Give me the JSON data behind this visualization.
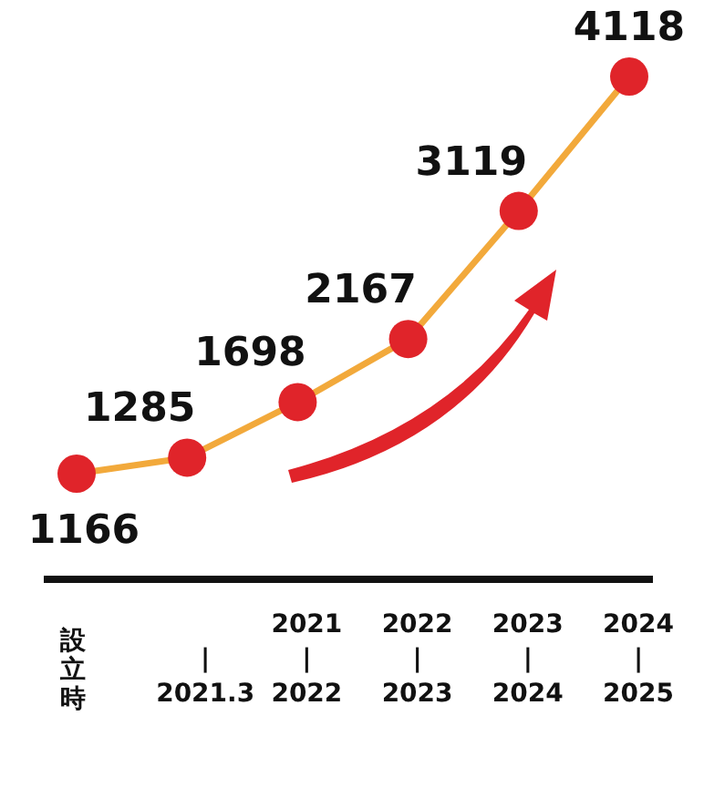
{
  "chart_data": {
    "type": "line",
    "categories": [
      "設立時",
      "|\n2021.3",
      "2021\n|\n2022",
      "2022\n|\n2023",
      "2023\n|\n2024",
      "2024\n|\n2025"
    ],
    "values": [
      1166,
      1285,
      1698,
      2167,
      3119,
      4118
    ],
    "color": "#f2a93b",
    "colors": [
      "#e0242a",
      "#e0242a",
      "#e0242a",
      "#e0242a",
      "#e0242a",
      "#e0242a"
    ],
    "marker": "circle",
    "data_labels": true
  }
}
